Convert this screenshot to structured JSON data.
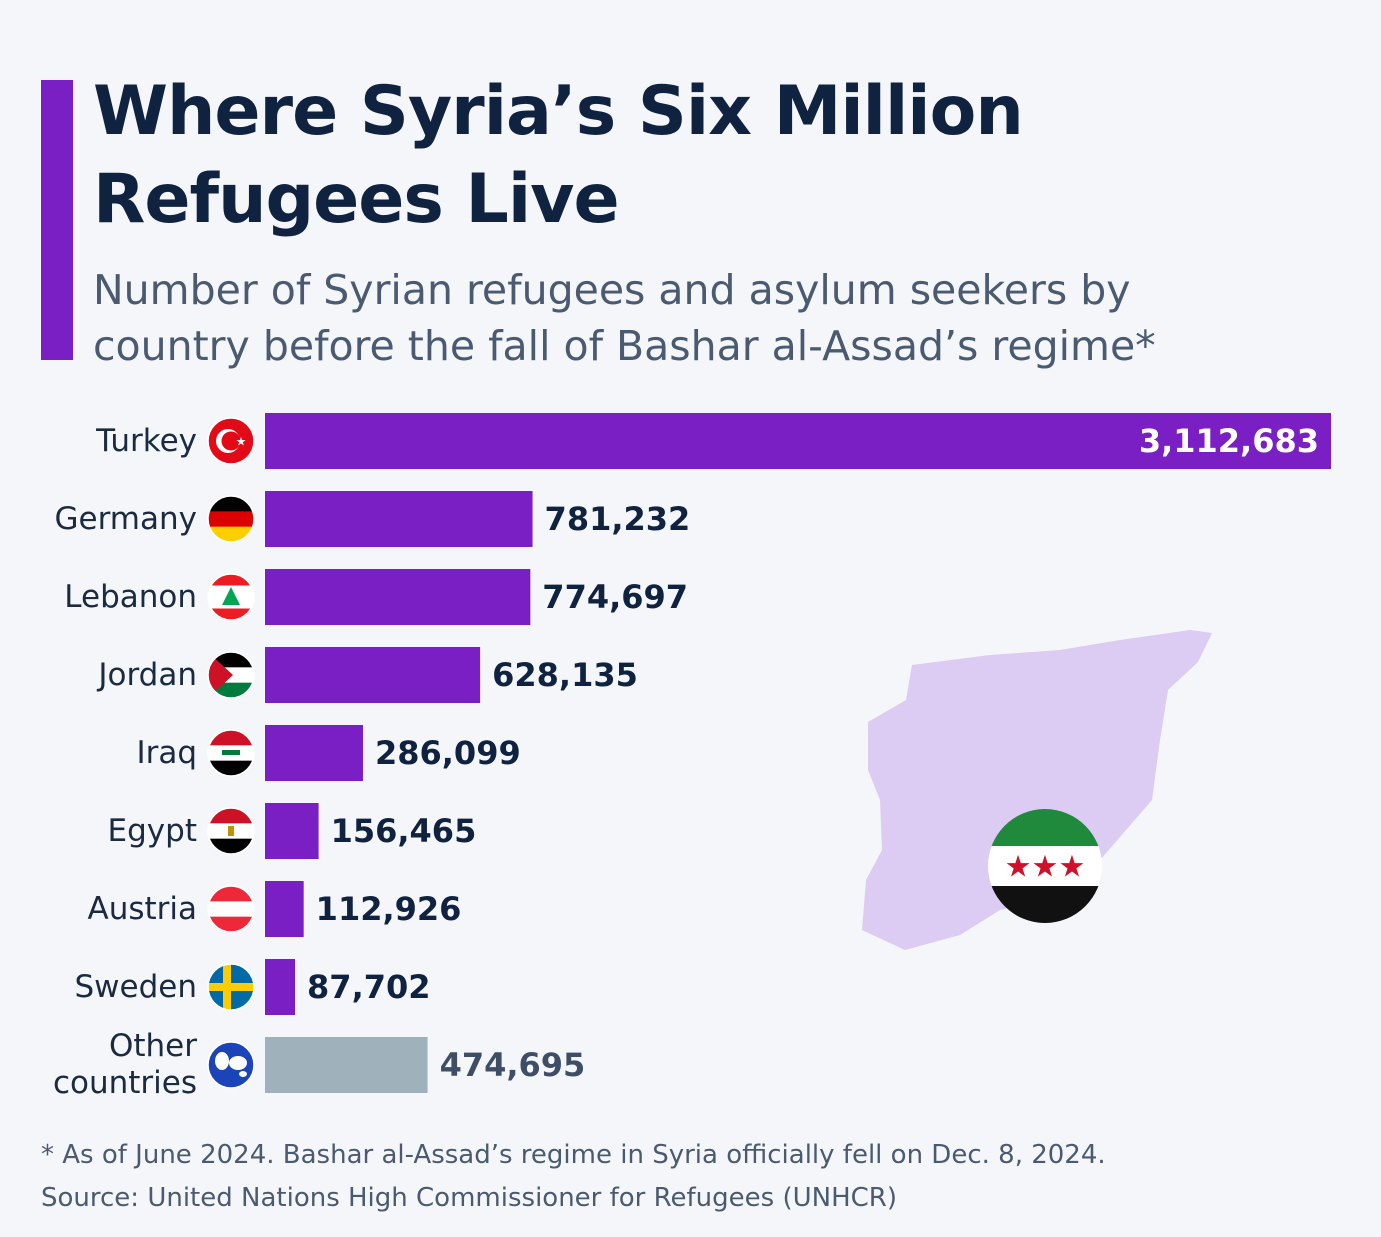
{
  "chart_data": {
    "type": "bar",
    "title": "Where Syria’s Six Million Refugees Live",
    "subtitle": "Number of Syrian refugees and asylum seekers by country before the fall of Bashar al-Assad’s regime*",
    "categories": [
      "Turkey",
      "Germany",
      "Lebanon",
      "Jordan",
      "Iraq",
      "Egypt",
      "Austria",
      "Sweden",
      "Other countries"
    ],
    "values": [
      3112683,
      781232,
      774697,
      628135,
      286099,
      156465,
      112926,
      87702,
      474695
    ],
    "value_labels": [
      "3,112,683",
      "781,232",
      "774,697",
      "628,135",
      "286,099",
      "156,465",
      "112,926",
      "87,702",
      "474,695"
    ],
    "colors": [
      "#7a1fc4",
      "#7a1fc4",
      "#7a1fc4",
      "#7a1fc4",
      "#7a1fc4",
      "#7a1fc4",
      "#7a1fc4",
      "#7a1fc4",
      "#9fb1ba"
    ],
    "footnote": "* As of June 2024. Bashar al-Assad’s regime in Syria officially fell on Dec. 8, 2024.",
    "source": "Source: United Nations High Commissioner for Refugees (UNHCR)"
  }
}
